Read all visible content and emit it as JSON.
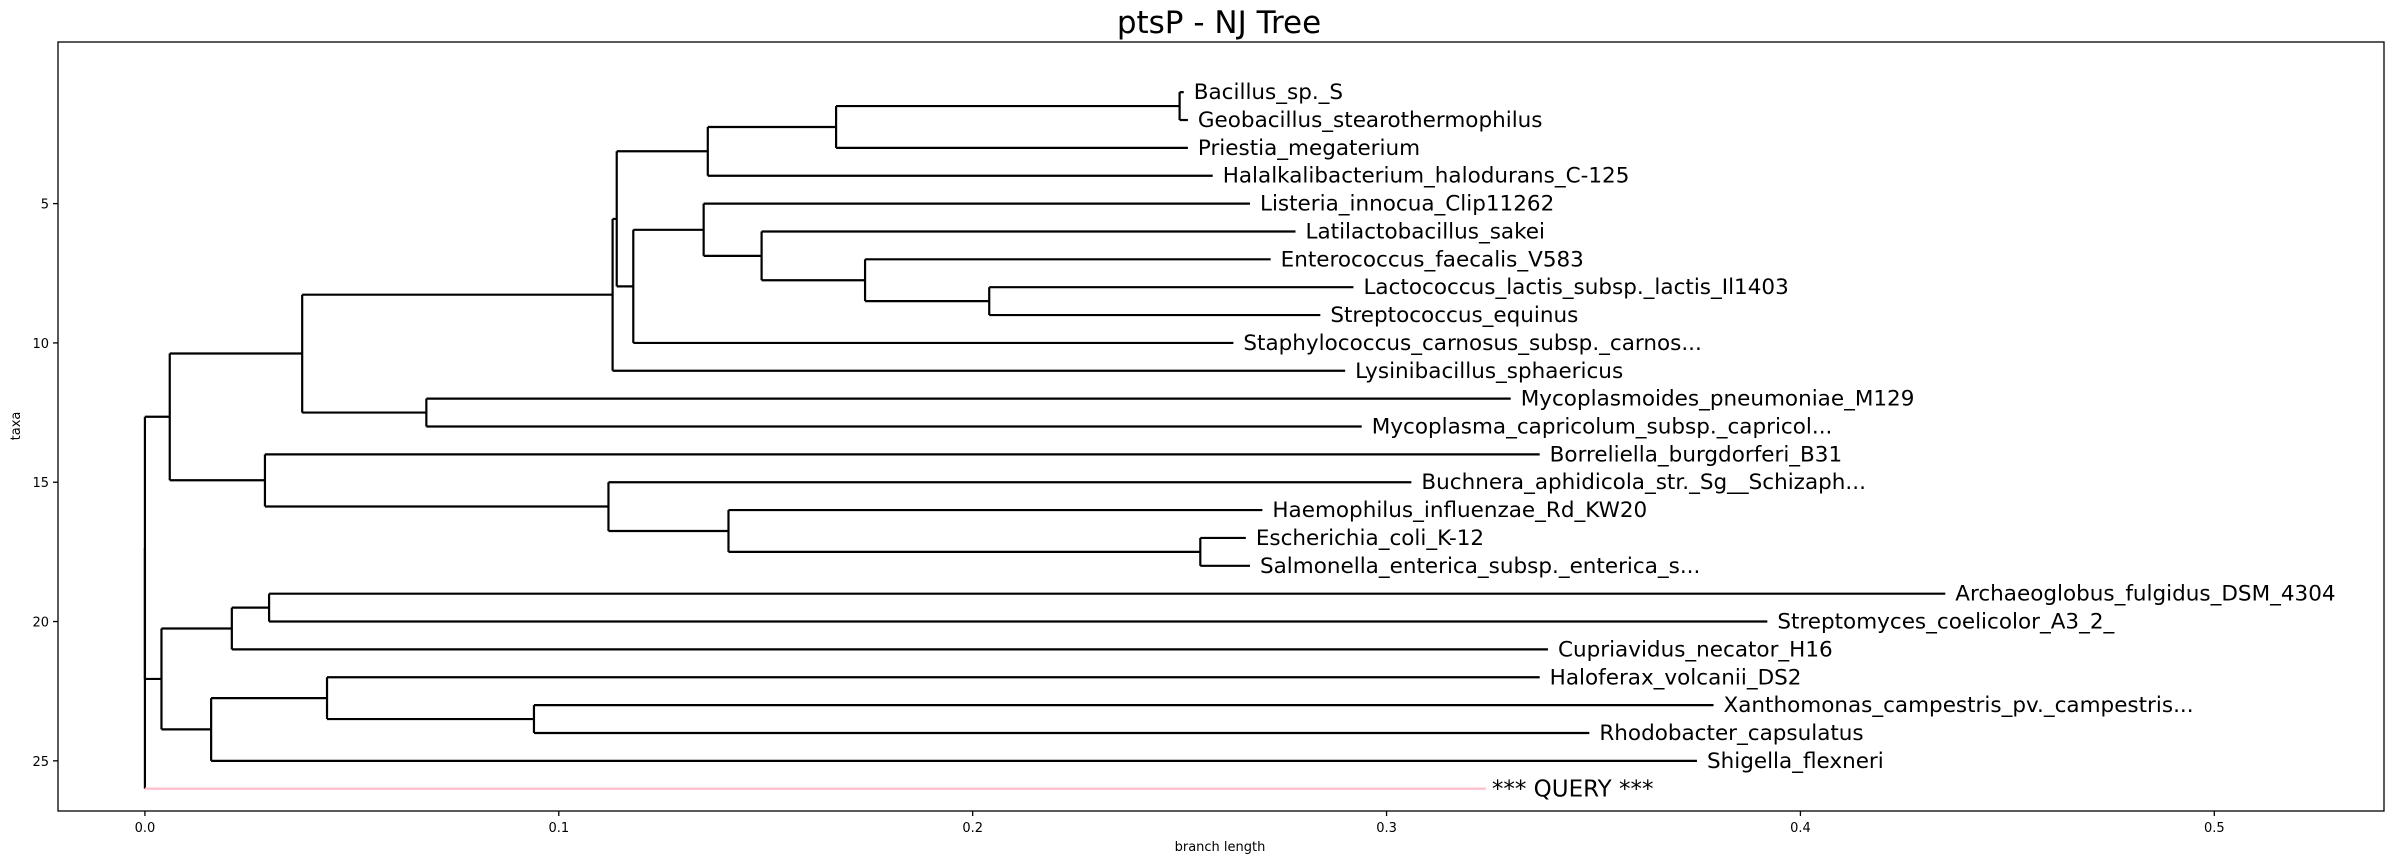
{
  "chart_data": {
    "type": "dendrogram",
    "title": "ptsP - NJ Tree",
    "xlabel": "branch length",
    "ylabel": "taxa",
    "xlim": [
      -0.021,
      0.541
    ],
    "ylim": [
      26.8,
      -0.8
    ],
    "x_ticks": [
      {
        "value": 0.0,
        "label": "0.0"
      },
      {
        "value": 0.1,
        "label": "0.1"
      },
      {
        "value": 0.2,
        "label": "0.2"
      },
      {
        "value": 0.3,
        "label": "0.3"
      },
      {
        "value": 0.4,
        "label": "0.4"
      },
      {
        "value": 0.5,
        "label": "0.5"
      }
    ],
    "y_ticks": [
      {
        "value": 5,
        "label": "5"
      },
      {
        "value": 10,
        "label": "10"
      },
      {
        "value": 15,
        "label": "15"
      },
      {
        "value": 20,
        "label": "20"
      },
      {
        "value": 25,
        "label": "25"
      }
    ],
    "grid": false,
    "leaves": [
      {
        "row": 1,
        "x": 0.251,
        "label": "Bacillus_sp._S"
      },
      {
        "row": 2,
        "x": 0.252,
        "label": "Geobacillus_stearothermophilus"
      },
      {
        "row": 3,
        "x": 0.252,
        "label": "Priestia_megaterium"
      },
      {
        "row": 4,
        "x": 0.258,
        "label": "Halalkalibacterium_halodurans_C-125"
      },
      {
        "row": 5,
        "x": 0.267,
        "label": "Listeria_innocua_Clip11262"
      },
      {
        "row": 6,
        "x": 0.278,
        "label": "Latilactobacillus_sakei"
      },
      {
        "row": 7,
        "x": 0.272,
        "label": "Enterococcus_faecalis_V583"
      },
      {
        "row": 8,
        "x": 0.292,
        "label": "Lactococcus_lactis_subsp._lactis_Il1403"
      },
      {
        "row": 9,
        "x": 0.284,
        "label": "Streptococcus_equinus"
      },
      {
        "row": 10,
        "x": 0.263,
        "label": "Staphylococcus_carnosus_subsp._carnos..."
      },
      {
        "row": 11,
        "x": 0.29,
        "label": "Lysinibacillus_sphaericus"
      },
      {
        "row": 12,
        "x": 0.33,
        "label": "Mycoplasmoides_pneumoniae_M129"
      },
      {
        "row": 13,
        "x": 0.294,
        "label": "Mycoplasma_capricolum_subsp._capricol..."
      },
      {
        "row": 14,
        "x": 0.337,
        "label": "Borreliella_burgdorferi_B31"
      },
      {
        "row": 15,
        "x": 0.306,
        "label": "Buchnera_aphidicola_str._Sg__Schizaph..."
      },
      {
        "row": 16,
        "x": 0.27,
        "label": "Haemophilus_influenzae_Rd_KW20"
      },
      {
        "row": 17,
        "x": 0.266,
        "label": "Escherichia_coli_K-12"
      },
      {
        "row": 18,
        "x": 0.267,
        "label": "Salmonella_enterica_subsp._enterica_s..."
      },
      {
        "row": 19,
        "x": 0.435,
        "label": "Archaeoglobus_fulgidus_DSM_4304"
      },
      {
        "row": 20,
        "x": 0.392,
        "label": "Streptomyces_coelicolor_A3_2_"
      },
      {
        "row": 21,
        "x": 0.339,
        "label": "Cupriavidus_necator_H16"
      },
      {
        "row": 22,
        "x": 0.337,
        "label": "Haloferax_volcanii_DS2"
      },
      {
        "row": 23,
        "x": 0.379,
        "label": "Xanthomonas_campestris_pv._campestris..."
      },
      {
        "row": 24,
        "x": 0.349,
        "label": "Rhodobacter_capsulatus"
      },
      {
        "row": 25,
        "x": 0.375,
        "label": "Shigella_flexneri"
      }
    ],
    "query": {
      "row": 26,
      "x": 0.324,
      "label": "*** QUERY ***",
      "color": "#ffc0cb"
    },
    "edges": [
      {
        "x": 0.25,
        "y1": 1,
        "y2": 2,
        "children": [
          {
            "y": 1,
            "x_end": 0.251
          },
          {
            "y": 2,
            "x_end": 0.252
          }
        ]
      },
      {
        "x": 0.167,
        "y1": 1.5,
        "y2": 3,
        "children": [
          {
            "y": 1.5,
            "x_end": 0.25
          },
          {
            "y": 3,
            "x_end": 0.252
          }
        ]
      },
      {
        "x": 0.136,
        "y1": 2.25,
        "y2": 4,
        "children": [
          {
            "y": 2.25,
            "x_end": 0.167
          },
          {
            "y": 4,
            "x_end": 0.258
          }
        ]
      },
      {
        "x": 0.204,
        "y1": 8,
        "y2": 9,
        "children": [
          {
            "y": 8,
            "x_end": 0.292
          },
          {
            "y": 9,
            "x_end": 0.284
          }
        ]
      },
      {
        "x": 0.174,
        "y1": 7,
        "y2": 8.5,
        "children": [
          {
            "y": 7,
            "x_end": 0.272
          },
          {
            "y": 8.5,
            "x_end": 0.204
          }
        ]
      },
      {
        "x": 0.149,
        "y1": 6,
        "y2": 7.75,
        "children": [
          {
            "y": 6,
            "x_end": 0.278
          },
          {
            "y": 7.75,
            "x_end": 0.174
          }
        ]
      },
      {
        "x": 0.135,
        "y1": 5,
        "y2": 6.875,
        "children": [
          {
            "y": 5,
            "x_end": 0.267
          },
          {
            "y": 6.875,
            "x_end": 0.149
          }
        ]
      },
      {
        "x": 0.118,
        "y1": 5.94,
        "y2": 10,
        "children": [
          {
            "y": 5.94,
            "x_end": 0.135
          },
          {
            "y": 10,
            "x_end": 0.263
          }
        ]
      },
      {
        "x": 0.114,
        "y1": 3.12,
        "y2": 7.97,
        "children": [
          {
            "y": 3.12,
            "x_end": 0.136
          },
          {
            "y": 7.97,
            "x_end": 0.118
          }
        ]
      },
      {
        "x": 0.113,
        "y1": 5.55,
        "y2": 11,
        "children": [
          {
            "y": 5.55,
            "x_end": 0.114
          },
          {
            "y": 11,
            "x_end": 0.29
          }
        ]
      },
      {
        "x": 0.068,
        "y1": 12,
        "y2": 13,
        "children": [
          {
            "y": 12,
            "x_end": 0.33
          },
          {
            "y": 13,
            "x_end": 0.294
          }
        ]
      },
      {
        "x": 0.038,
        "y1": 8.27,
        "y2": 12.5,
        "children": [
          {
            "y": 8.27,
            "x_end": 0.113
          },
          {
            "y": 12.5,
            "x_end": 0.068
          }
        ]
      },
      {
        "x": 0.255,
        "y1": 17,
        "y2": 18,
        "children": [
          {
            "y": 17,
            "x_end": 0.266
          },
          {
            "y": 18,
            "x_end": 0.267
          }
        ]
      },
      {
        "x": 0.141,
        "y1": 16,
        "y2": 17.5,
        "children": [
          {
            "y": 16,
            "x_end": 0.27
          },
          {
            "y": 17.5,
            "x_end": 0.255
          }
        ]
      },
      {
        "x": 0.112,
        "y1": 15,
        "y2": 16.75,
        "children": [
          {
            "y": 15,
            "x_end": 0.306
          },
          {
            "y": 16.75,
            "x_end": 0.141
          }
        ]
      },
      {
        "x": 0.029,
        "y1": 14,
        "y2": 15.87,
        "children": [
          {
            "y": 14,
            "x_end": 0.337
          },
          {
            "y": 15.87,
            "x_end": 0.112
          }
        ]
      },
      {
        "x": 0.006,
        "y1": 10.38,
        "y2": 14.93,
        "children": [
          {
            "y": 10.38,
            "x_end": 0.038
          },
          {
            "y": 14.93,
            "x_end": 0.029
          }
        ]
      },
      {
        "x": 0.03,
        "y1": 19,
        "y2": 20,
        "children": [
          {
            "y": 19,
            "x_end": 0.435
          },
          {
            "y": 20,
            "x_end": 0.392
          }
        ]
      },
      {
        "x": 0.021,
        "y1": 19.5,
        "y2": 21,
        "children": [
          {
            "y": 19.5,
            "x_end": 0.03
          },
          {
            "y": 21,
            "x_end": 0.339
          }
        ]
      },
      {
        "x": 0.094,
        "y1": 23,
        "y2": 24,
        "children": [
          {
            "y": 23,
            "x_end": 0.379
          },
          {
            "y": 24,
            "x_end": 0.349
          }
        ]
      },
      {
        "x": 0.044,
        "y1": 22,
        "y2": 23.5,
        "children": [
          {
            "y": 22,
            "x_end": 0.337
          },
          {
            "y": 23.5,
            "x_end": 0.094
          }
        ]
      },
      {
        "x": 0.016,
        "y1": 22.75,
        "y2": 25,
        "children": [
          {
            "y": 22.75,
            "x_end": 0.044
          },
          {
            "y": 25,
            "x_end": 0.375
          }
        ]
      },
      {
        "x": 0.004,
        "y1": 20.25,
        "y2": 23.87,
        "children": [
          {
            "y": 20.25,
            "x_end": 0.021
          },
          {
            "y": 23.87,
            "x_end": 0.016
          }
        ]
      },
      {
        "x": 0.0,
        "y1": 12.65,
        "y2": 22.06,
        "children": [
          {
            "y": 12.65,
            "x_end": 0.006
          },
          {
            "y": 22.06,
            "x_end": 0.004
          }
        ]
      },
      {
        "x": 0.0,
        "y1": 17.36,
        "y2": 26,
        "children": []
      }
    ]
  }
}
